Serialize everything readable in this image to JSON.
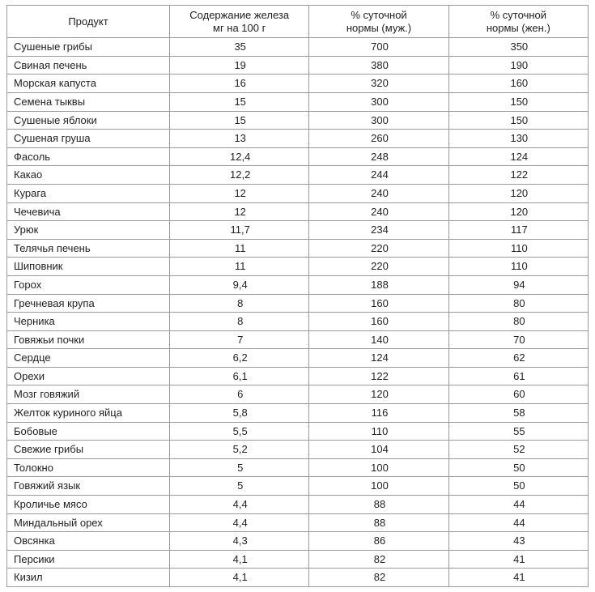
{
  "table": {
    "type": "table",
    "background_color": "#ffffff",
    "border_color": "#9a9a9a",
    "text_color": "#222222",
    "font_size_pt": 10,
    "columns": [
      {
        "label_lines": [
          "Продукт"
        ],
        "align": "left",
        "width_pct": 28
      },
      {
        "label_lines": [
          "Содержание железа",
          "мг на 100 г"
        ],
        "align": "center",
        "width_pct": 24
      },
      {
        "label_lines": [
          "% суточной",
          "нормы (муж.)"
        ],
        "align": "center",
        "width_pct": 24
      },
      {
        "label_lines": [
          "% суточной",
          "нормы (жен.)"
        ],
        "align": "center",
        "width_pct": 24
      }
    ],
    "rows": [
      [
        "Сушеные грибы",
        "35",
        "700",
        "350"
      ],
      [
        "Свиная печень",
        "19",
        "380",
        "190"
      ],
      [
        "Морская капуста",
        "16",
        "320",
        "160"
      ],
      [
        "Семена тыквы",
        "15",
        "300",
        "150"
      ],
      [
        "Сушеные яблоки",
        "15",
        "300",
        "150"
      ],
      [
        "Сушеная груша",
        "13",
        "260",
        "130"
      ],
      [
        "Фасоль",
        "12,4",
        "248",
        "124"
      ],
      [
        "Какао",
        "12,2",
        "244",
        "122"
      ],
      [
        "Курага",
        "12",
        "240",
        "120"
      ],
      [
        "Чечевича",
        "12",
        "240",
        "120"
      ],
      [
        "Урюк",
        "11,7",
        "234",
        "117"
      ],
      [
        "Телячья печень",
        "11",
        "220",
        "110"
      ],
      [
        "Шиповник",
        "11",
        "220",
        "110"
      ],
      [
        "Горох",
        "9,4",
        "188",
        "94"
      ],
      [
        "Гречневая крупа",
        "8",
        "160",
        "80"
      ],
      [
        "Черника",
        "8",
        "160",
        "80"
      ],
      [
        "Говяжьи почки",
        "7",
        "140",
        "70"
      ],
      [
        "Сердце",
        "6,2",
        "124",
        "62"
      ],
      [
        "Орехи",
        "6,1",
        "122",
        "61"
      ],
      [
        "Мозг говяжий",
        "6",
        "120",
        "60"
      ],
      [
        "Желток куриного яйца",
        "5,8",
        "116",
        "58"
      ],
      [
        "Бобовые",
        "5,5",
        "110",
        "55"
      ],
      [
        "Свежие грибы",
        "5,2",
        "104",
        "52"
      ],
      [
        "Толокно",
        "5",
        "100",
        "50"
      ],
      [
        "Говяжий язык",
        "5",
        "100",
        "50"
      ],
      [
        "Кроличье мясо",
        "4,4",
        "88",
        "44"
      ],
      [
        "Миндальный орех",
        "4,4",
        "88",
        "44"
      ],
      [
        "Овсянка",
        "4,3",
        "86",
        "43"
      ],
      [
        "Персики",
        "4,1",
        "82",
        "41"
      ],
      [
        "Кизил",
        "4,1",
        "82",
        "41"
      ]
    ]
  }
}
